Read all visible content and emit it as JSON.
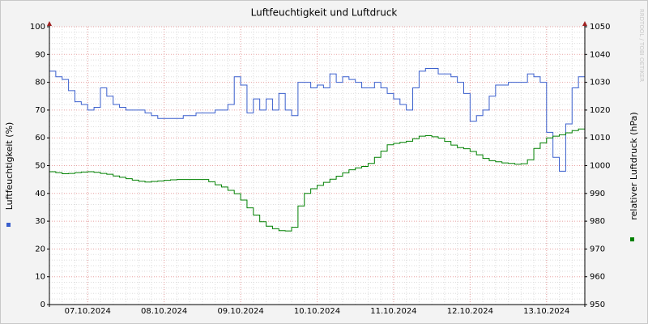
{
  "chart_data": {
    "type": "line",
    "title": "Luftfeuchtigkeit und Luftdruck",
    "y_label": "Luftfeuchtigkeit (%)",
    "y2_label": "relativer Luftdruck (hPa)",
    "watermark": "RRDTOOL / TOBI OETIKER",
    "categories": [
      null,
      null,
      null,
      null,
      null,
      null,
      "07.10.2024",
      null,
      null,
      null,
      null,
      null,
      null,
      null,
      null,
      null,
      null,
      null,
      "08.10.2024",
      null,
      null,
      null,
      null,
      null,
      null,
      null,
      null,
      null,
      null,
      null,
      "09.10.2024",
      null,
      null,
      null,
      null,
      null,
      null,
      null,
      null,
      null,
      null,
      null,
      "10.10.2024",
      null,
      null,
      null,
      null,
      null,
      null,
      null,
      null,
      null,
      null,
      null,
      "11.10.2024",
      null,
      null,
      null,
      null,
      null,
      null,
      null,
      null,
      null,
      null,
      null,
      "12.10.2024",
      null,
      null,
      null,
      null,
      null,
      null,
      null,
      null,
      null,
      null,
      null,
      "13.10.2024",
      null,
      null,
      null,
      null,
      null,
      null
    ],
    "series": [
      {
        "color": "#3a5fcd",
        "values": [
          84,
          82,
          81,
          77,
          73,
          72,
          70,
          71,
          78,
          75,
          72,
          71,
          70,
          70,
          70,
          69,
          68,
          67,
          67,
          67,
          67,
          68,
          68,
          69,
          69,
          69,
          70,
          70,
          72,
          82,
          79,
          69,
          74,
          70,
          74,
          70,
          76,
          70,
          68,
          80,
          80,
          78,
          79,
          78,
          83,
          80,
          82,
          81,
          80,
          78,
          78,
          80,
          78,
          76,
          74,
          72,
          70,
          78,
          84,
          85,
          85,
          83,
          83,
          82,
          80,
          76,
          66,
          68,
          70,
          75,
          79,
          79,
          80,
          80,
          80,
          83,
          82,
          80,
          62,
          53,
          48,
          65,
          78,
          82,
          84
        ]
      },
      {
        "color": "#008000",
        "axis": "y2",
        "values": [
          997.8,
          997.5,
          997.1,
          997.2,
          997.5,
          997.7,
          997.8,
          997.6,
          997.2,
          996.9,
          996.3,
          995.8,
          995.3,
          994.8,
          994.4,
          994.1,
          994.3,
          994.5,
          994.7,
          994.9,
          995.0,
          995.0,
          995.0,
          995.0,
          995.0,
          994.2,
          993.1,
          992.3,
          991.1,
          989.9,
          987.6,
          984.8,
          982.2,
          979.8,
          978.2,
          977.3,
          976.6,
          976.5,
          977.8,
          985.5,
          990.0,
          991.7,
          992.9,
          994.0,
          995.1,
          996.2,
          997.4,
          998.5,
          999.2,
          999.7,
          1000.8,
          1003.0,
          1005.2,
          1007.5,
          1008.0,
          1008.4,
          1008.8,
          1009.7,
          1010.6,
          1010.8,
          1010.4,
          1009.9,
          1008.7,
          1007.4,
          1006.5,
          1006.1,
          1005.1,
          1003.9,
          1002.6,
          1001.8,
          1001.4,
          1001.0,
          1000.8,
          1000.5,
          1000.7,
          1002.1,
          1006.2,
          1008.2,
          1010.0,
          1010.6,
          1011.1,
          1011.8,
          1012.6,
          1013.2,
          1013.8
        ]
      }
    ],
    "ylim": [
      0,
      100
    ],
    "yticks": [
      0,
      10,
      20,
      30,
      40,
      50,
      60,
      70,
      80,
      90,
      100
    ],
    "y2lim": [
      950,
      1050
    ],
    "y2ticks": [
      950,
      960,
      970,
      980,
      990,
      1000,
      1010,
      1020,
      1030,
      1040,
      1050
    ],
    "grid": true
  }
}
